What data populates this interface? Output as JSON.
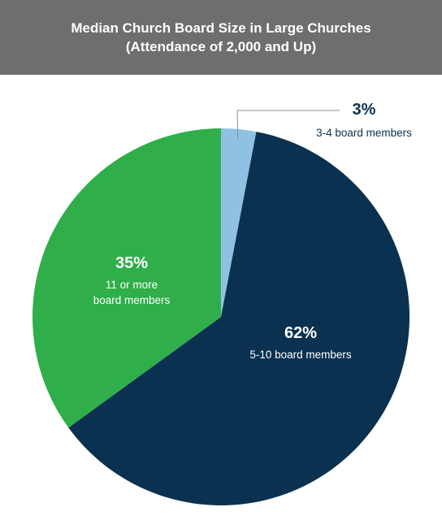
{
  "header": {
    "title_line1": "Median Church Board Size in Large Churches",
    "title_line2": "(Attendance of 2,000 and Up)"
  },
  "colors": {
    "header_bg": "#6d6e70",
    "slice_3_4": "#8fc1e3",
    "slice_5_10": "#0a3150",
    "slice_11_plus": "#2fae4a",
    "label_dark": "#0a3150",
    "label_light": "#ffffff"
  },
  "chart_data": {
    "type": "pie",
    "title": "Median Church Board Size in Large Churches (Attendance of 2,000 and Up)",
    "slices": [
      {
        "percent_label": "3%",
        "value": 3,
        "label_lines": [
          "3-4 board members"
        ],
        "color": "#8fc1e3"
      },
      {
        "percent_label": "62%",
        "value": 62,
        "label_lines": [
          "5-10 board members"
        ],
        "color": "#0a3150"
      },
      {
        "percent_label": "35%",
        "value": 35,
        "label_lines": [
          "11 or more",
          "board members"
        ],
        "color": "#2fae4a"
      }
    ],
    "start": "top, clockwise",
    "legend": "none"
  }
}
